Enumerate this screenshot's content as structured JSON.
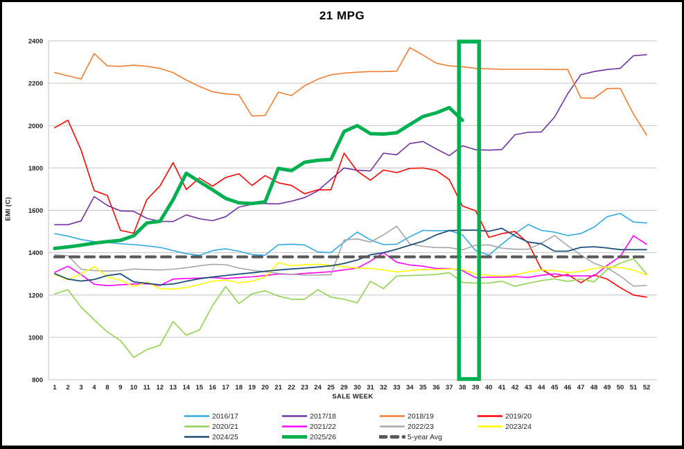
{
  "window": {
    "background": "#FFFFFF",
    "border_color": "#000000"
  },
  "chart_data": {
    "type": "line",
    "title": "21 MPG",
    "xlabel": "SALE WEEK",
    "ylabel": "EMI (C)",
    "ylim": [
      800,
      2400
    ],
    "yticks": [
      800,
      1000,
      1200,
      1400,
      1600,
      1800,
      2000,
      2200,
      2400
    ],
    "grid": "horizontal-only",
    "legend_position": "bottom",
    "colors": {
      "grid": "#C3C3C3",
      "tick_text": "#1F1F1F",
      "highlight": "#00B050"
    },
    "categories": [
      1,
      2,
      3,
      4,
      8,
      9,
      10,
      11,
      12,
      13,
      14,
      15,
      16,
      17,
      18,
      19,
      20,
      21,
      22,
      23,
      24,
      25,
      29,
      30,
      31,
      32,
      33,
      34,
      35,
      36,
      37,
      38,
      39,
      40,
      41,
      42,
      43,
      44,
      45,
      46,
      47,
      48,
      49,
      50,
      51,
      52
    ],
    "series": [
      {
        "name": "2016/17",
        "color": "#31A9E0",
        "width": 1.6,
        "values": [
          1490,
          1478,
          1462,
          1452,
          1448,
          1442,
          1438,
          1432,
          1425,
          1410,
          1395,
          1387,
          1410,
          1418,
          1407,
          1391,
          1388,
          1437,
          1440,
          1436,
          1403,
          1400,
          1450,
          1497,
          1460,
          1438,
          1440,
          1475,
          1505,
          1503,
          1505,
          1484,
          1410,
          1388,
          1440,
          1490,
          1533,
          1505,
          1497,
          1481,
          1490,
          1520,
          1570,
          1585,
          1545,
          1540
        ]
      },
      {
        "name": "2017/18",
        "color": "#7030A0",
        "width": 1.6,
        "values": [
          1532,
          1532,
          1550,
          1665,
          1623,
          1597,
          1595,
          1562,
          1548,
          1547,
          1578,
          1560,
          1551,
          1570,
          1615,
          1628,
          1632,
          1630,
          1643,
          1660,
          1692,
          1746,
          1800,
          1789,
          1786,
          1870,
          1862,
          1915,
          1925,
          1890,
          1858,
          1905,
          1886,
          1884,
          1887,
          1957,
          1968,
          1970,
          2040,
          2150,
          2240,
          2255,
          2265,
          2270,
          2330,
          2335
        ]
      },
      {
        "name": "2018/19",
        "color": "#ED7D31",
        "width": 1.6,
        "values": [
          2250,
          2235,
          2220,
          2340,
          2282,
          2280,
          2285,
          2280,
          2270,
          2250,
          2215,
          2185,
          2160,
          2150,
          2145,
          2045,
          2048,
          2158,
          2142,
          2188,
          2219,
          2240,
          2248,
          2252,
          2255,
          2255,
          2257,
          2368,
          2333,
          2295,
          2282,
          2278,
          2270,
          2268,
          2266,
          2266,
          2266,
          2266,
          2265,
          2265,
          2131,
          2129,
          2175,
          2176,
          2055,
          1956
        ]
      },
      {
        "name": "2019/20",
        "color": "#FF0000",
        "width": 1.6,
        "values": [
          1990,
          2025,
          1885,
          1693,
          1670,
          1505,
          1492,
          1650,
          1715,
          1825,
          1698,
          1752,
          1714,
          1755,
          1772,
          1717,
          1764,
          1730,
          1717,
          1678,
          1697,
          1697,
          1870,
          1785,
          1742,
          1790,
          1778,
          1798,
          1800,
          1788,
          1745,
          1620,
          1598,
          1472,
          1490,
          1500,
          1445,
          1322,
          1285,
          1297,
          1258,
          1295,
          1275,
          1235,
          1200,
          1190
        ]
      },
      {
        "name": "2020/21",
        "color": "#92D050",
        "width": 1.6,
        "values": [
          1205,
          1225,
          1143,
          1083,
          1025,
          985,
          905,
          942,
          963,
          1075,
          1010,
          1035,
          1150,
          1240,
          1160,
          1205,
          1220,
          1195,
          1180,
          1180,
          1225,
          1190,
          1180,
          1163,
          1265,
          1230,
          1289,
          1292,
          1294,
          1297,
          1306,
          1259,
          1256,
          1256,
          1265,
          1241,
          1255,
          1268,
          1276,
          1264,
          1276,
          1262,
          1320,
          1350,
          1372,
          1300
        ]
      },
      {
        "name": "2021/22",
        "color": "#FF00FF",
        "width": 1.6,
        "values": [
          1307,
          1336,
          1297,
          1251,
          1244,
          1248,
          1252,
          1253,
          1245,
          1275,
          1278,
          1280,
          1283,
          1278,
          1282,
          1286,
          1292,
          1299,
          1297,
          1302,
          1306,
          1310,
          1319,
          1327,
          1360,
          1400,
          1355,
          1342,
          1336,
          1325,
          1325,
          1315,
          1282,
          1284,
          1284,
          1287,
          1283,
          1293,
          1300,
          1290,
          1290,
          1290,
          1340,
          1382,
          1480,
          1440
        ]
      },
      {
        "name": "2022/23",
        "color": "#A6A6A6",
        "width": 1.6,
        "values": [
          1390,
          1386,
          1322,
          1315,
          1313,
          1315,
          1323,
          1320,
          1318,
          1322,
          1328,
          1338,
          1345,
          1343,
          1327,
          1317,
          1310,
          1302,
          1298,
          1294,
          1294,
          1296,
          1460,
          1465,
          1450,
          1484,
          1525,
          1441,
          1430,
          1424,
          1424,
          1413,
          1435,
          1437,
          1421,
          1416,
          1416,
          1445,
          1481,
          1433,
          1389,
          1350,
          1328,
          1290,
          1242,
          1245
        ]
      },
      {
        "name": "2023/24",
        "color": "#FFFF00",
        "width": 1.6,
        "values": [
          1297,
          1272,
          1300,
          1334,
          1286,
          1270,
          1240,
          1260,
          1230,
          1228,
          1235,
          1250,
          1265,
          1271,
          1258,
          1265,
          1285,
          1352,
          1338,
          1343,
          1345,
          1341,
          1334,
          1327,
          1325,
          1318,
          1309,
          1315,
          1320,
          1320,
          1323,
          1320,
          1300,
          1293,
          1289,
          1295,
          1309,
          1319,
          1315,
          1306,
          1311,
          1325,
          1333,
          1330,
          1318,
          1295
        ]
      },
      {
        "name": "2024/25",
        "color": "#1F4E79",
        "width": 1.8,
        "values": [
          1301,
          1275,
          1266,
          1273,
          1292,
          1300,
          1262,
          1255,
          1248,
          1252,
          1265,
          1277,
          1285,
          1292,
          1299,
          1305,
          1312,
          1318,
          1323,
          1327,
          1332,
          1338,
          1349,
          1365,
          1390,
          1400,
          1416,
          1435,
          1454,
          1484,
          1504,
          1506,
          1506,
          1501,
          1515,
          1479,
          1450,
          1442,
          1407,
          1407,
          1425,
          1428,
          1422,
          1414,
          1414,
          1414
        ]
      },
      {
        "name": "5-year Avg",
        "color": "#595959",
        "width": 4.2,
        "dash": "13 9",
        "values": [
          1380,
          1380,
          1380,
          1380,
          1380,
          1380,
          1380,
          1380,
          1380,
          1380,
          1380,
          1380,
          1380,
          1380,
          1380,
          1380,
          1380,
          1380,
          1380,
          1380,
          1380,
          1380,
          1380,
          1380,
          1380,
          1380,
          1380,
          1380,
          1380,
          1380,
          1380,
          1380,
          1380,
          1380,
          1380,
          1380,
          1380,
          1380,
          1380,
          1380,
          1380,
          1380,
          1380,
          1380,
          1380,
          1380
        ]
      },
      {
        "name": "2025/26",
        "color": "#00B050",
        "width": 5,
        "values": [
          1420,
          1427,
          1435,
          1445,
          1452,
          1458,
          1480,
          1540,
          1548,
          1650,
          1775,
          1735,
          1697,
          1656,
          1635,
          1632,
          1640,
          1798,
          1787,
          1827,
          1836,
          1840,
          1972,
          2000,
          1962,
          1960,
          1966,
          2005,
          2043,
          2060,
          2085,
          2025,
          null,
          null,
          null,
          null,
          null,
          null,
          null,
          null,
          null,
          null,
          null,
          null,
          null,
          null
        ]
      }
    ],
    "highlight_box": {
      "start_week": 38,
      "end_week": 39,
      "color": "#00B050"
    }
  },
  "legend": {
    "rows": [
      [
        "2016/17",
        "2017/18",
        "2018/19",
        "2019/20"
      ],
      [
        "2020/21",
        "2021/22",
        "2022/23",
        "2023/24"
      ],
      [
        "2024/25",
        "2025/26",
        "5-year Avg"
      ]
    ]
  }
}
